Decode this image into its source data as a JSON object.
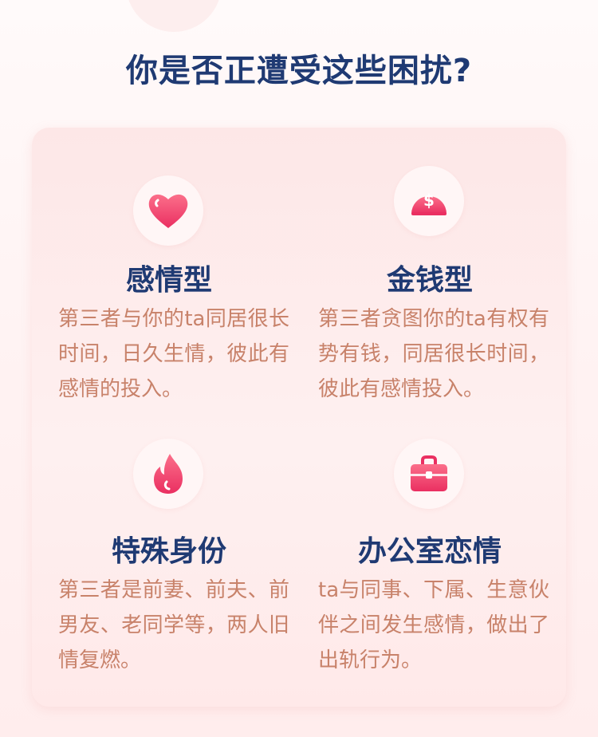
{
  "page": {
    "title": "你是否正遭受这些困扰?"
  },
  "colors": {
    "title": "#1f3a73",
    "desc": "#c8826a",
    "icon_gradient_top": "#fb6f8a",
    "icon_gradient_bottom": "#ea2f61"
  },
  "items": [
    {
      "title": "感情型",
      "icon": "heart-icon",
      "desc": "第三者与你的ta同居很长时间，日久生情，彼此有感情的投入。"
    },
    {
      "title": "金钱型",
      "icon": "money-icon",
      "desc": "第三者贪图你的ta有权有势有钱，同居很长时间，彼此有感情投入。"
    },
    {
      "title": "特殊身份",
      "icon": "flame-icon",
      "desc": "第三者是前妻、前夫、前男友、老同学等，两人旧情复燃。"
    },
    {
      "title": "办公室恋情",
      "icon": "briefcase-icon",
      "desc": "ta与同事、下属、生意伙伴之间发生感情，做出了出轨行为。"
    }
  ]
}
